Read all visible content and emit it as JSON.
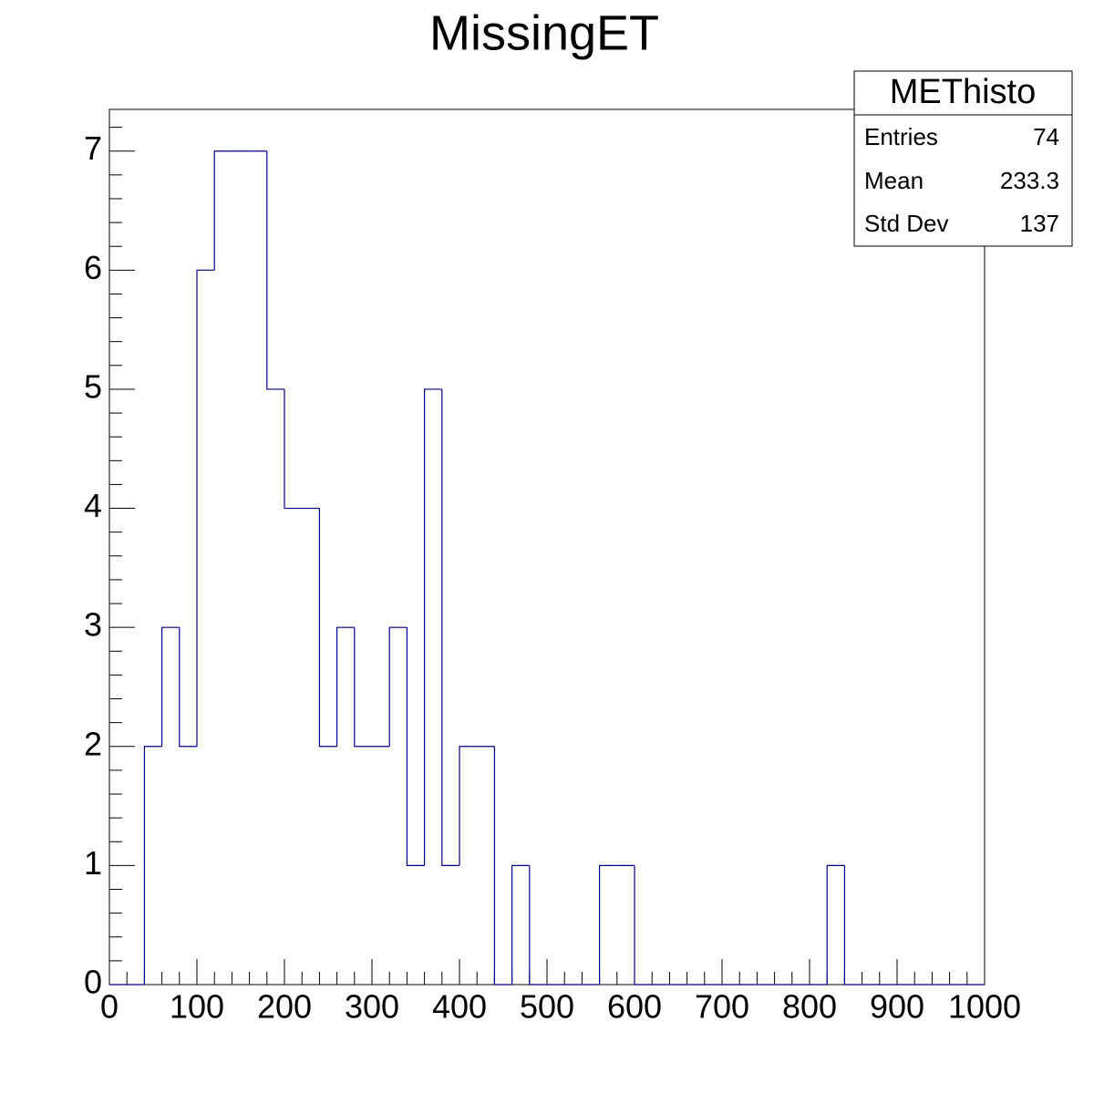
{
  "chart_data": {
    "type": "histogram",
    "title": "MissingET",
    "bins": [
      0,
      20,
      40,
      60,
      80,
      100,
      120,
      140,
      160,
      180,
      200,
      220,
      240,
      260,
      280,
      300,
      320,
      340,
      360,
      380,
      400,
      420,
      440,
      460,
      480,
      500,
      520,
      540,
      560,
      580,
      600,
      620,
      640,
      660,
      680,
      700,
      720,
      740,
      760,
      780,
      800,
      820,
      840,
      860,
      880,
      900,
      920,
      940,
      960,
      980,
      1000
    ],
    "values": [
      0,
      0,
      2,
      3,
      2,
      6,
      7,
      7,
      7,
      5,
      4,
      4,
      2,
      3,
      2,
      2,
      3,
      1,
      5,
      1,
      2,
      2,
      0,
      1,
      0,
      0,
      0,
      0,
      1,
      1,
      0,
      0,
      0,
      0,
      0,
      0,
      0,
      0,
      0,
      0,
      0,
      1,
      0,
      0,
      0,
      0,
      0,
      0,
      0,
      0
    ],
    "color": "#000080",
    "xlim": [
      0,
      1000
    ],
    "xticks": [
      0,
      100,
      200,
      300,
      400,
      500,
      600,
      700,
      800,
      900,
      1000
    ],
    "ylim": [
      0,
      7.35
    ],
    "yticks": [
      0,
      1,
      2,
      3,
      4,
      5,
      6,
      7
    ],
    "stats": {
      "title": "METhisto",
      "rows": [
        {
          "label": "Entries",
          "value": 74
        },
        {
          "label": "Mean",
          "value": 233.3
        },
        {
          "label": "Std Dev",
          "value": 137
        }
      ]
    }
  }
}
